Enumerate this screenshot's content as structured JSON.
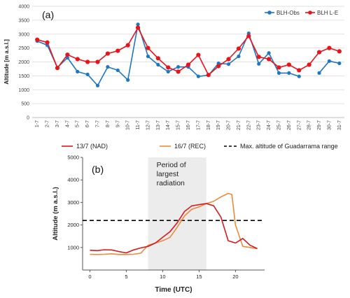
{
  "chart_data": [
    {
      "type": "line",
      "panel_label": "(a)",
      "ylabel": "Altitude [m a.s.l.]",
      "xlabel": "",
      "ylim": [
        0,
        4000
      ],
      "yticks": [
        0,
        500,
        1000,
        1500,
        2000,
        2500,
        3000,
        3500,
        4000
      ],
      "grid": true,
      "legend": "top-right",
      "categories": [
        "1-7",
        "2-7",
        "3-7",
        "4-7",
        "5-7",
        "6-7",
        "7-7",
        "8-7",
        "9-7",
        "10-7",
        "11-7",
        "12-7",
        "13-7",
        "14-7",
        "15-7",
        "16-7",
        "17-7",
        "18-7",
        "19-7",
        "20-7",
        "21-7",
        "22-7",
        "23-7",
        "24-7",
        "25-7",
        "26-7",
        "27-7",
        "28-7",
        "29-7",
        "30-7",
        "31-7"
      ],
      "series": [
        {
          "name": "BLH-Obs",
          "color": "#1f77c4",
          "marker": "circle",
          "values": [
            2750,
            2600,
            1800,
            2150,
            1650,
            1550,
            1150,
            1820,
            1700,
            1350,
            3350,
            2200,
            1900,
            1650,
            1820,
            1820,
            1480,
            1520,
            1950,
            1920,
            2200,
            3030,
            1930,
            2320,
            1600,
            1600,
            1480,
            null,
            1600,
            2030,
            1950
          ]
        },
        {
          "name": "BLH L-E",
          "color": "#e8141c",
          "marker": "circle",
          "values": [
            2800,
            2700,
            1780,
            2260,
            2100,
            2000,
            2000,
            2300,
            2400,
            2600,
            3230,
            2500,
            2130,
            1800,
            1650,
            1900,
            2250,
            1530,
            1850,
            2100,
            2480,
            2930,
            2180,
            2100,
            1800,
            1900,
            1700,
            1900,
            2350,
            2500,
            2380
          ]
        }
      ]
    },
    {
      "type": "line",
      "panel_label": "(b)",
      "xlabel": "Time (UTC)",
      "ylabel": "Altitude (m a.s.l.)",
      "xlim": [
        -1,
        24
      ],
      "ylim": [
        0,
        5000
      ],
      "xticks": [
        0,
        5,
        10,
        15,
        20
      ],
      "yticks": [
        1000,
        2000,
        3000,
        4000,
        5000
      ],
      "legend": "top",
      "shaded_region": {
        "x": [
          8,
          16
        ],
        "label_lines": [
          "Period of",
          "largest",
          "radiation"
        ]
      },
      "reference_line": {
        "name": "Max. altitude of Guadarrama range",
        "y": 2200,
        "color": "#000000"
      },
      "series": [
        {
          "name": "13/7 (NAD)",
          "color": "#d71920",
          "x": [
            0,
            1,
            2,
            3,
            4,
            5,
            6,
            7,
            8,
            9,
            10,
            11,
            12,
            13,
            14,
            15,
            16,
            17,
            18,
            19,
            20,
            21,
            22,
            23
          ],
          "values": [
            880,
            860,
            900,
            890,
            820,
            760,
            890,
            980,
            1050,
            1200,
            1450,
            1700,
            2100,
            2600,
            2850,
            2900,
            2950,
            2850,
            2350,
            1300,
            1200,
            1400,
            1100,
            950
          ]
        },
        {
          "name": "16/7 (REC)",
          "color": "#ec8a3a",
          "x": [
            0,
            1,
            2,
            3,
            4,
            5,
            6,
            7,
            8,
            9,
            10,
            11,
            12,
            13,
            14,
            15,
            16,
            17,
            18,
            19,
            19.5,
            20,
            21,
            22,
            23
          ],
          "values": [
            700,
            690,
            700,
            720,
            690,
            690,
            700,
            750,
            1100,
            1200,
            1300,
            1450,
            1900,
            2400,
            2700,
            2800,
            2950,
            3050,
            3250,
            3400,
            3350,
            2000,
            1050,
            1000,
            950
          ]
        }
      ]
    }
  ]
}
